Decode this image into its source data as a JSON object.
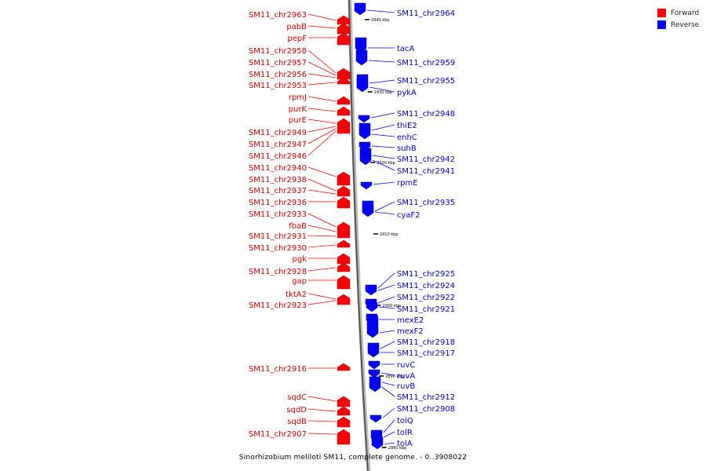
{
  "legend": {
    "forward": {
      "label": "Forward",
      "color": "#ff0000"
    },
    "reverse": {
      "label": "Reverse",
      "color": "#0000ff"
    }
  },
  "caption": "Sinorhizobium meliloti SM11, complete genome. - 0..3908022",
  "ticks": [
    "2940 kbp",
    "2930 kbp",
    "2920 kbp",
    "2910 kbp",
    "2900 kbp",
    "2890 kbp",
    "2880 kbp"
  ],
  "forward_genes": [
    "SM11_chr2963",
    "pabB",
    "pepF",
    "SM11_chr2958",
    "SM11_chr2957",
    "SM11_chr2956",
    "SM11_chr2953",
    "rpmJ",
    "purK",
    "purE",
    "SM11_chr2949",
    "SM11_chr2947",
    "SM11_chr2946",
    "SM11_chr2940",
    "SM11_chr2938",
    "SM11_chr2937",
    "SM11_chr2936",
    "SM11_chr2933",
    "fbaB",
    "SM11_chr2931",
    "SM11_chr2930",
    "pgk",
    "SM11_chr2928",
    "gap",
    "tktA2",
    "SM11_chr2923",
    "SM11_chr2916",
    "sqdC",
    "sqdD",
    "sqdB",
    "SM11_chr2907"
  ],
  "reverse_genes": [
    "SM11_chr2964",
    "tacA",
    "SM11_chr2959",
    "SM11_chr2955",
    "pykA",
    "SM11_chr2948",
    "thiE2",
    "enhC",
    "suhB",
    "SM11_chr2942",
    "SM11_chr2941",
    "rpmE",
    "SM11_chr2935",
    "cyaF2",
    "SM11_chr2925",
    "SM11_chr2924",
    "SM11_chr2922",
    "SM11_chr2921",
    "mexE2",
    "mexF2",
    "SM11_chr2918",
    "SM11_chr2917",
    "ruvC",
    "ruvA",
    "ruvB",
    "SM11_chr2912",
    "SM11_chr2908",
    "tolQ",
    "tolR",
    "tolA"
  ]
}
